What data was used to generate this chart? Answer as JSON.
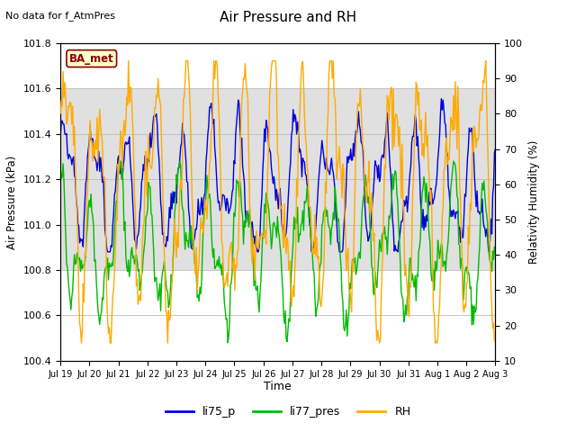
{
  "title": "Air Pressure and RH",
  "top_left_note": "No data for f_AtmPres",
  "xlabel": "Time",
  "ylabel_left": "Air Pressure (kPa)",
  "ylabel_right": "Relativity Humidity (%)",
  "ylim_left": [
    100.4,
    101.8
  ],
  "ylim_right": [
    10,
    100
  ],
  "yticks_left": [
    100.4,
    100.6,
    100.8,
    101.0,
    101.2,
    101.4,
    101.6,
    101.8
  ],
  "yticks_right": [
    10,
    20,
    30,
    40,
    50,
    60,
    70,
    80,
    90,
    100
  ],
  "xtick_labels": [
    "Jul 19",
    "Jul 20",
    "Jul 21",
    "Jul 22",
    "Jul 23",
    "Jul 24",
    "Jul 25",
    "Jul 26",
    "Jul 27",
    "Jul 28",
    "Jul 29",
    "Jul 30",
    "Jul 31",
    "Aug 1",
    "Aug 2",
    "Aug 3"
  ],
  "color_li75": "#0000dd",
  "color_li77": "#00bb00",
  "color_rh": "#ffaa00",
  "legend_labels": [
    "li75_p",
    "li77_pres",
    "RH"
  ],
  "shaded_band_ylim": [
    100.8,
    101.6
  ],
  "shaded_band_color": "#e0e0e0",
  "ba_met_label": "BA_met",
  "ba_met_color": "#8b0000",
  "ba_met_bg": "#ffffcc",
  "n_points": 500
}
